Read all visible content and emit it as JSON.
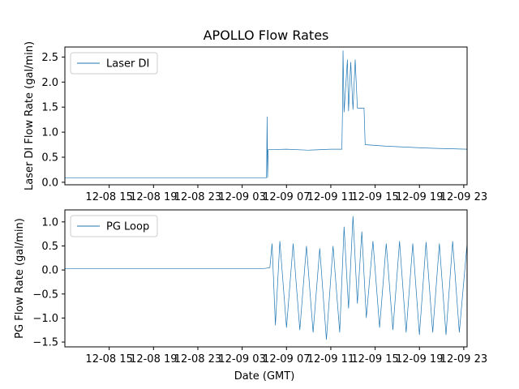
{
  "chart_data": {
    "type": "line",
    "title": "APOLLO Flow Rates",
    "xlabel": "Date (GMT)",
    "x_ticks": [
      "12-08 15",
      "12-08 19",
      "12-08 23",
      "12-09 03",
      "12-09 07",
      "12-09 11",
      "12-09 15",
      "12-09 19",
      "12-09 23"
    ],
    "x_tick_hours": [
      15,
      19,
      23,
      27,
      31,
      35,
      39,
      43,
      47
    ],
    "xlim_hours": [
      11,
      47.3
    ],
    "panels": [
      {
        "ylabel": "Laser DI Flow Rate (gal/min)",
        "ylim": [
          -0.05,
          2.7
        ],
        "y_ticks": [
          0.0,
          0.5,
          1.0,
          1.5,
          2.0,
          2.5
        ],
        "y_tick_labels": [
          "0.0",
          "0.5",
          "1.0",
          "1.5",
          "2.0",
          "2.5"
        ],
        "legend": "Laser DI",
        "series": {
          "name": "Laser DI",
          "points": [
            [
              11.0,
              0.09
            ],
            [
              29.2,
              0.09
            ],
            [
              29.25,
              1.31
            ],
            [
              29.3,
              0.09
            ],
            [
              29.35,
              0.65
            ],
            [
              31.0,
              0.66
            ],
            [
              33.0,
              0.64
            ],
            [
              35.0,
              0.66
            ],
            [
              36.0,
              0.66
            ],
            [
              36.05,
              1.38
            ],
            [
              36.1,
              2.63
            ],
            [
              36.2,
              1.4
            ],
            [
              36.5,
              2.45
            ],
            [
              36.6,
              1.42
            ],
            [
              36.8,
              2.4
            ],
            [
              37.0,
              1.45
            ],
            [
              37.2,
              2.45
            ],
            [
              37.4,
              1.48
            ],
            [
              38.0,
              1.48
            ],
            [
              38.1,
              0.75
            ],
            [
              40.0,
              0.72
            ],
            [
              44.0,
              0.68
            ],
            [
              47.3,
              0.66
            ]
          ]
        }
      },
      {
        "ylabel": "PG Flow Rate (gal/min)",
        "ylim": [
          -1.6,
          1.25
        ],
        "y_ticks": [
          -1.5,
          -1.0,
          -0.5,
          0.0,
          0.5,
          1.0
        ],
        "y_tick_labels": [
          "−1.5",
          "−1.0",
          "−0.5",
          "0.0",
          "0.5",
          "1.0"
        ],
        "legend": "PG Loop",
        "series": {
          "name": "PG Loop",
          "points": [
            [
              11.0,
              0.03
            ],
            [
              29.0,
              0.03
            ],
            [
              29.5,
              0.05
            ],
            [
              29.7,
              0.55
            ],
            [
              30.0,
              -1.15
            ],
            [
              30.4,
              0.6
            ],
            [
              31.0,
              -1.2
            ],
            [
              31.6,
              0.55
            ],
            [
              32.2,
              -1.25
            ],
            [
              32.8,
              0.5
            ],
            [
              33.4,
              -1.3
            ],
            [
              34.0,
              0.45
            ],
            [
              34.6,
              -1.45
            ],
            [
              35.2,
              0.5
            ],
            [
              35.8,
              -1.3
            ],
            [
              36.2,
              0.9
            ],
            [
              36.6,
              -0.8
            ],
            [
              37.0,
              1.12
            ],
            [
              37.4,
              -0.7
            ],
            [
              37.8,
              0.8
            ],
            [
              38.2,
              -1.0
            ],
            [
              38.8,
              0.6
            ],
            [
              39.4,
              -1.2
            ],
            [
              40.0,
              0.55
            ],
            [
              40.6,
              -1.25
            ],
            [
              41.2,
              0.6
            ],
            [
              41.8,
              -1.3
            ],
            [
              42.4,
              0.55
            ],
            [
              43.0,
              -1.35
            ],
            [
              43.6,
              0.58
            ],
            [
              44.2,
              -1.3
            ],
            [
              44.8,
              0.55
            ],
            [
              45.4,
              -1.35
            ],
            [
              46.0,
              0.6
            ],
            [
              46.6,
              -1.3
            ],
            [
              47.3,
              0.55
            ]
          ]
        }
      }
    ]
  }
}
